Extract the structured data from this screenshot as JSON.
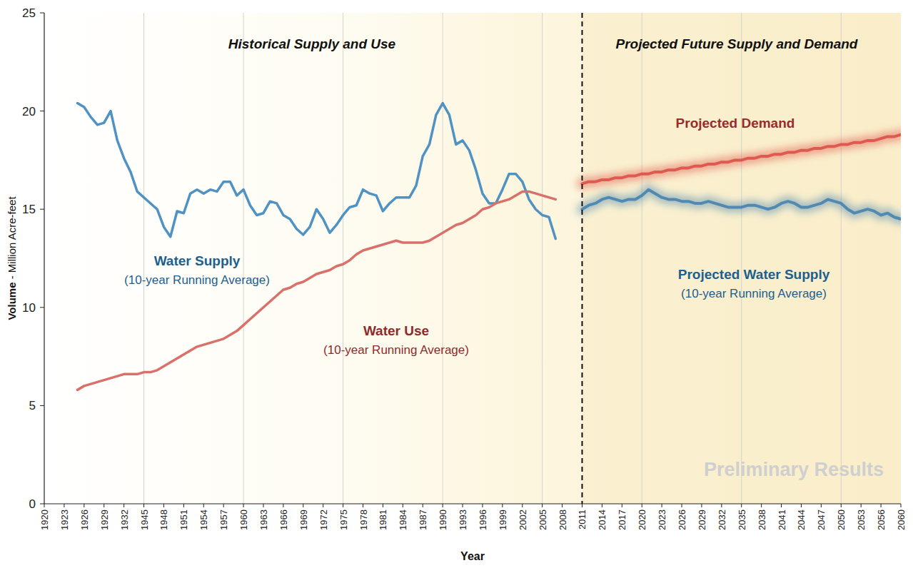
{
  "chart_data": {
    "type": "line",
    "xlabel": "Year",
    "ylabel": "Volume - Million Acre-feet",
    "annotations": [
      "Historical Supply and Use",
      "Projected Future Supply and Demand",
      "Preliminary Results"
    ],
    "divider": "2011",
    "grid": "x",
    "ylim": [
      0,
      25
    ],
    "yticks": [
      0,
      5,
      10,
      15,
      20,
      25
    ],
    "categories": [
      "1920",
      null,
      null,
      "1923",
      null,
      null,
      "1926",
      null,
      null,
      "1929",
      null,
      null,
      "1932",
      null,
      null,
      "1945",
      null,
      null,
      "1948",
      null,
      null,
      "1951",
      null,
      null,
      "1954",
      null,
      null,
      "1957",
      null,
      null,
      "1960",
      null,
      null,
      "1963",
      null,
      null,
      "1966",
      null,
      null,
      "1969",
      null,
      null,
      "1972",
      null,
      null,
      "1975",
      null,
      null,
      "1978",
      null,
      null,
      "1981",
      null,
      null,
      "1984",
      null,
      null,
      "1987",
      null,
      null,
      "1990",
      null,
      null,
      "1993",
      null,
      null,
      "1996",
      null,
      null,
      "1999",
      null,
      null,
      "2002",
      null,
      null,
      "2005",
      null,
      null,
      "2008",
      null,
      null,
      "2011",
      null,
      null,
      "2014",
      null,
      null,
      "2017",
      null,
      null,
      "2020",
      null,
      null,
      "2023",
      null,
      null,
      "2026",
      null,
      null,
      "2029",
      null,
      null,
      "2032",
      null,
      null,
      "2035",
      null,
      null,
      "2038",
      null,
      null,
      "2041",
      null,
      null,
      "2044",
      null,
      null,
      "2047",
      null,
      null,
      "2050",
      null,
      null,
      "2053",
      null,
      null,
      "2056",
      null,
      null,
      "2060"
    ],
    "series": [
      {
        "name": "Water Supply",
        "annotation": "(10-year Running Average)",
        "color": "#4f92c3",
        "line_style": "solid",
        "values": [
          null,
          null,
          null,
          null,
          null,
          20.4,
          20.2,
          19.7,
          19.3,
          19.4,
          20.0,
          18.5,
          17.6,
          16.9,
          15.9,
          15.6,
          15.3,
          15.0,
          14.1,
          13.6,
          14.9,
          14.8,
          15.8,
          16.0,
          15.8,
          16.0,
          15.9,
          16.4,
          16.4,
          15.7,
          16.0,
          15.2,
          14.7,
          14.8,
          15.4,
          15.3,
          14.7,
          14.5,
          14.0,
          13.7,
          14.1,
          15.0,
          14.5,
          13.8,
          14.2,
          14.7,
          15.1,
          15.2,
          16.0,
          15.8,
          15.7,
          14.9,
          15.3,
          15.6,
          15.6,
          15.6,
          16.2,
          17.7,
          18.3,
          19.8,
          20.4,
          19.8,
          18.3,
          18.5,
          18.0,
          17.0,
          15.8,
          15.3,
          15.3,
          16.0,
          16.8,
          16.8,
          16.4,
          15.5,
          15.0,
          14.7,
          14.6,
          13.5,
          null,
          null,
          null,
          null,
          null,
          null,
          null,
          null,
          null,
          null,
          null,
          null,
          null,
          null,
          null,
          null,
          null,
          null,
          null,
          null,
          null,
          null,
          null,
          null,
          null,
          null,
          null,
          null,
          null,
          null,
          null,
          null,
          null,
          null,
          null,
          null,
          null,
          null,
          null,
          null,
          null,
          null,
          null,
          null,
          null,
          null,
          null,
          null,
          null,
          null,
          null,
          null
        ]
      },
      {
        "name": "Water Use",
        "annotation": "(10-year Running Average)",
        "color": "#d9706a",
        "line_style": "solid",
        "values": [
          null,
          null,
          null,
          null,
          null,
          5.8,
          6.0,
          6.1,
          6.2,
          6.3,
          6.4,
          6.5,
          6.6,
          6.6,
          6.6,
          6.7,
          6.7,
          6.8,
          7.0,
          7.2,
          7.4,
          7.6,
          7.8,
          8.0,
          8.1,
          8.2,
          8.3,
          8.4,
          8.6,
          8.8,
          9.1,
          9.4,
          9.7,
          10.0,
          10.3,
          10.6,
          10.9,
          11.0,
          11.2,
          11.3,
          11.5,
          11.7,
          11.8,
          11.9,
          12.1,
          12.2,
          12.4,
          12.7,
          12.9,
          13.0,
          13.1,
          13.2,
          13.3,
          13.4,
          13.3,
          13.3,
          13.3,
          13.3,
          13.4,
          13.6,
          13.8,
          14.0,
          14.2,
          14.3,
          14.5,
          14.7,
          15.0,
          15.1,
          15.3,
          15.4,
          15.5,
          15.7,
          15.9,
          15.9,
          15.8,
          15.7,
          15.6,
          15.5,
          null,
          null,
          null,
          null,
          null,
          null,
          null,
          null,
          null,
          null,
          null,
          null,
          null,
          null,
          null,
          null,
          null,
          null,
          null,
          null,
          null,
          null,
          null,
          null,
          null,
          null,
          null,
          null,
          null,
          null,
          null,
          null,
          null,
          null,
          null,
          null,
          null,
          null,
          null,
          null,
          null,
          null,
          null,
          null,
          null,
          null,
          null,
          null,
          null,
          null,
          null,
          null
        ]
      },
      {
        "name": "Projected Demand",
        "color": "#dc4a42",
        "line_style": "fuzzy",
        "values": [
          null,
          null,
          null,
          null,
          null,
          null,
          null,
          null,
          null,
          null,
          null,
          null,
          null,
          null,
          null,
          null,
          null,
          null,
          null,
          null,
          null,
          null,
          null,
          null,
          null,
          null,
          null,
          null,
          null,
          null,
          null,
          null,
          null,
          null,
          null,
          null,
          null,
          null,
          null,
          null,
          null,
          null,
          null,
          null,
          null,
          null,
          null,
          null,
          null,
          null,
          null,
          null,
          null,
          null,
          null,
          null,
          null,
          null,
          null,
          null,
          null,
          null,
          null,
          null,
          null,
          null,
          null,
          null,
          null,
          null,
          null,
          null,
          null,
          null,
          null,
          null,
          null,
          null,
          null,
          null,
          null,
          16.3,
          16.4,
          16.4,
          16.5,
          16.5,
          16.6,
          16.6,
          16.7,
          16.7,
          16.8,
          16.8,
          16.9,
          16.9,
          17.0,
          17.0,
          17.1,
          17.1,
          17.2,
          17.2,
          17.3,
          17.3,
          17.4,
          17.4,
          17.5,
          17.5,
          17.6,
          17.6,
          17.7,
          17.7,
          17.8,
          17.8,
          17.9,
          17.9,
          18.0,
          18.0,
          18.1,
          18.1,
          18.2,
          18.2,
          18.3,
          18.3,
          18.4,
          18.4,
          18.5,
          18.5,
          18.6,
          18.7,
          18.7,
          18.8
        ]
      },
      {
        "name": "Projected Water Supply",
        "annotation": "(10-year Running Average)",
        "color": "#3f7fae",
        "line_style": "fuzzy",
        "values": [
          null,
          null,
          null,
          null,
          null,
          null,
          null,
          null,
          null,
          null,
          null,
          null,
          null,
          null,
          null,
          null,
          null,
          null,
          null,
          null,
          null,
          null,
          null,
          null,
          null,
          null,
          null,
          null,
          null,
          null,
          null,
          null,
          null,
          null,
          null,
          null,
          null,
          null,
          null,
          null,
          null,
          null,
          null,
          null,
          null,
          null,
          null,
          null,
          null,
          null,
          null,
          null,
          null,
          null,
          null,
          null,
          null,
          null,
          null,
          null,
          null,
          null,
          null,
          null,
          null,
          null,
          null,
          null,
          null,
          null,
          null,
          null,
          null,
          null,
          null,
          null,
          null,
          null,
          null,
          null,
          null,
          15.0,
          15.2,
          15.3,
          15.5,
          15.6,
          15.5,
          15.4,
          15.5,
          15.5,
          15.7,
          16.0,
          15.8,
          15.6,
          15.5,
          15.5,
          15.4,
          15.4,
          15.3,
          15.3,
          15.4,
          15.3,
          15.2,
          15.1,
          15.1,
          15.1,
          15.2,
          15.2,
          15.1,
          15.0,
          15.1,
          15.3,
          15.4,
          15.3,
          15.1,
          15.1,
          15.2,
          15.3,
          15.5,
          15.4,
          15.3,
          15.0,
          14.8,
          14.9,
          15.0,
          14.9,
          14.7,
          14.8,
          14.6,
          14.5
        ]
      }
    ]
  }
}
